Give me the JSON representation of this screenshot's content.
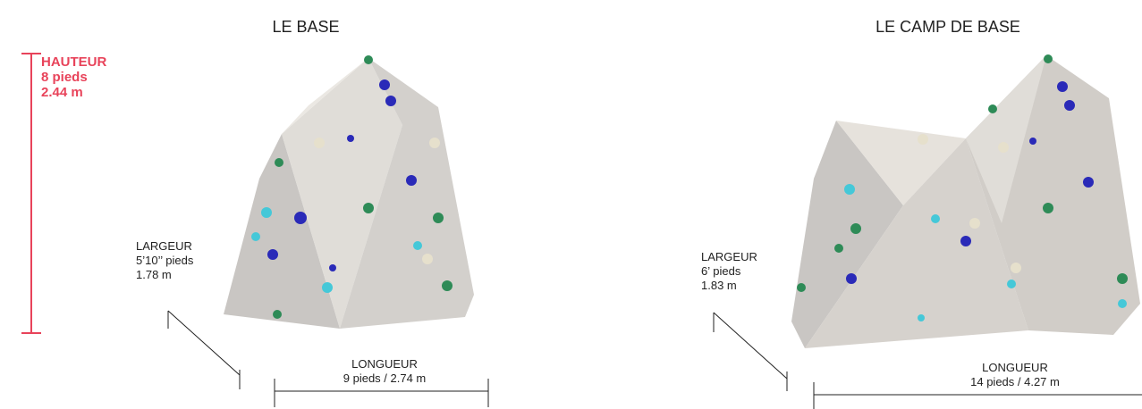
{
  "height": {
    "label": "HAUTEUR",
    "imperial": "8 pieds",
    "metric": "2.44 m"
  },
  "walls": [
    {
      "title": "LE BASE",
      "width": {
        "label": "LARGEUR",
        "imperial": "5’10’’ pieds",
        "metric": "1.78 m"
      },
      "length": {
        "label": "LONGUEUR",
        "value": "9 pieds / 2.74 m"
      }
    },
    {
      "title": "LE CAMP DE BASE",
      "width": {
        "label": "LARGEUR",
        "imperial": "6’ pieds",
        "metric": "1.83 m"
      },
      "length": {
        "label": "LONGUEUR",
        "value": "14 pieds / 4.27 m"
      }
    }
  ]
}
